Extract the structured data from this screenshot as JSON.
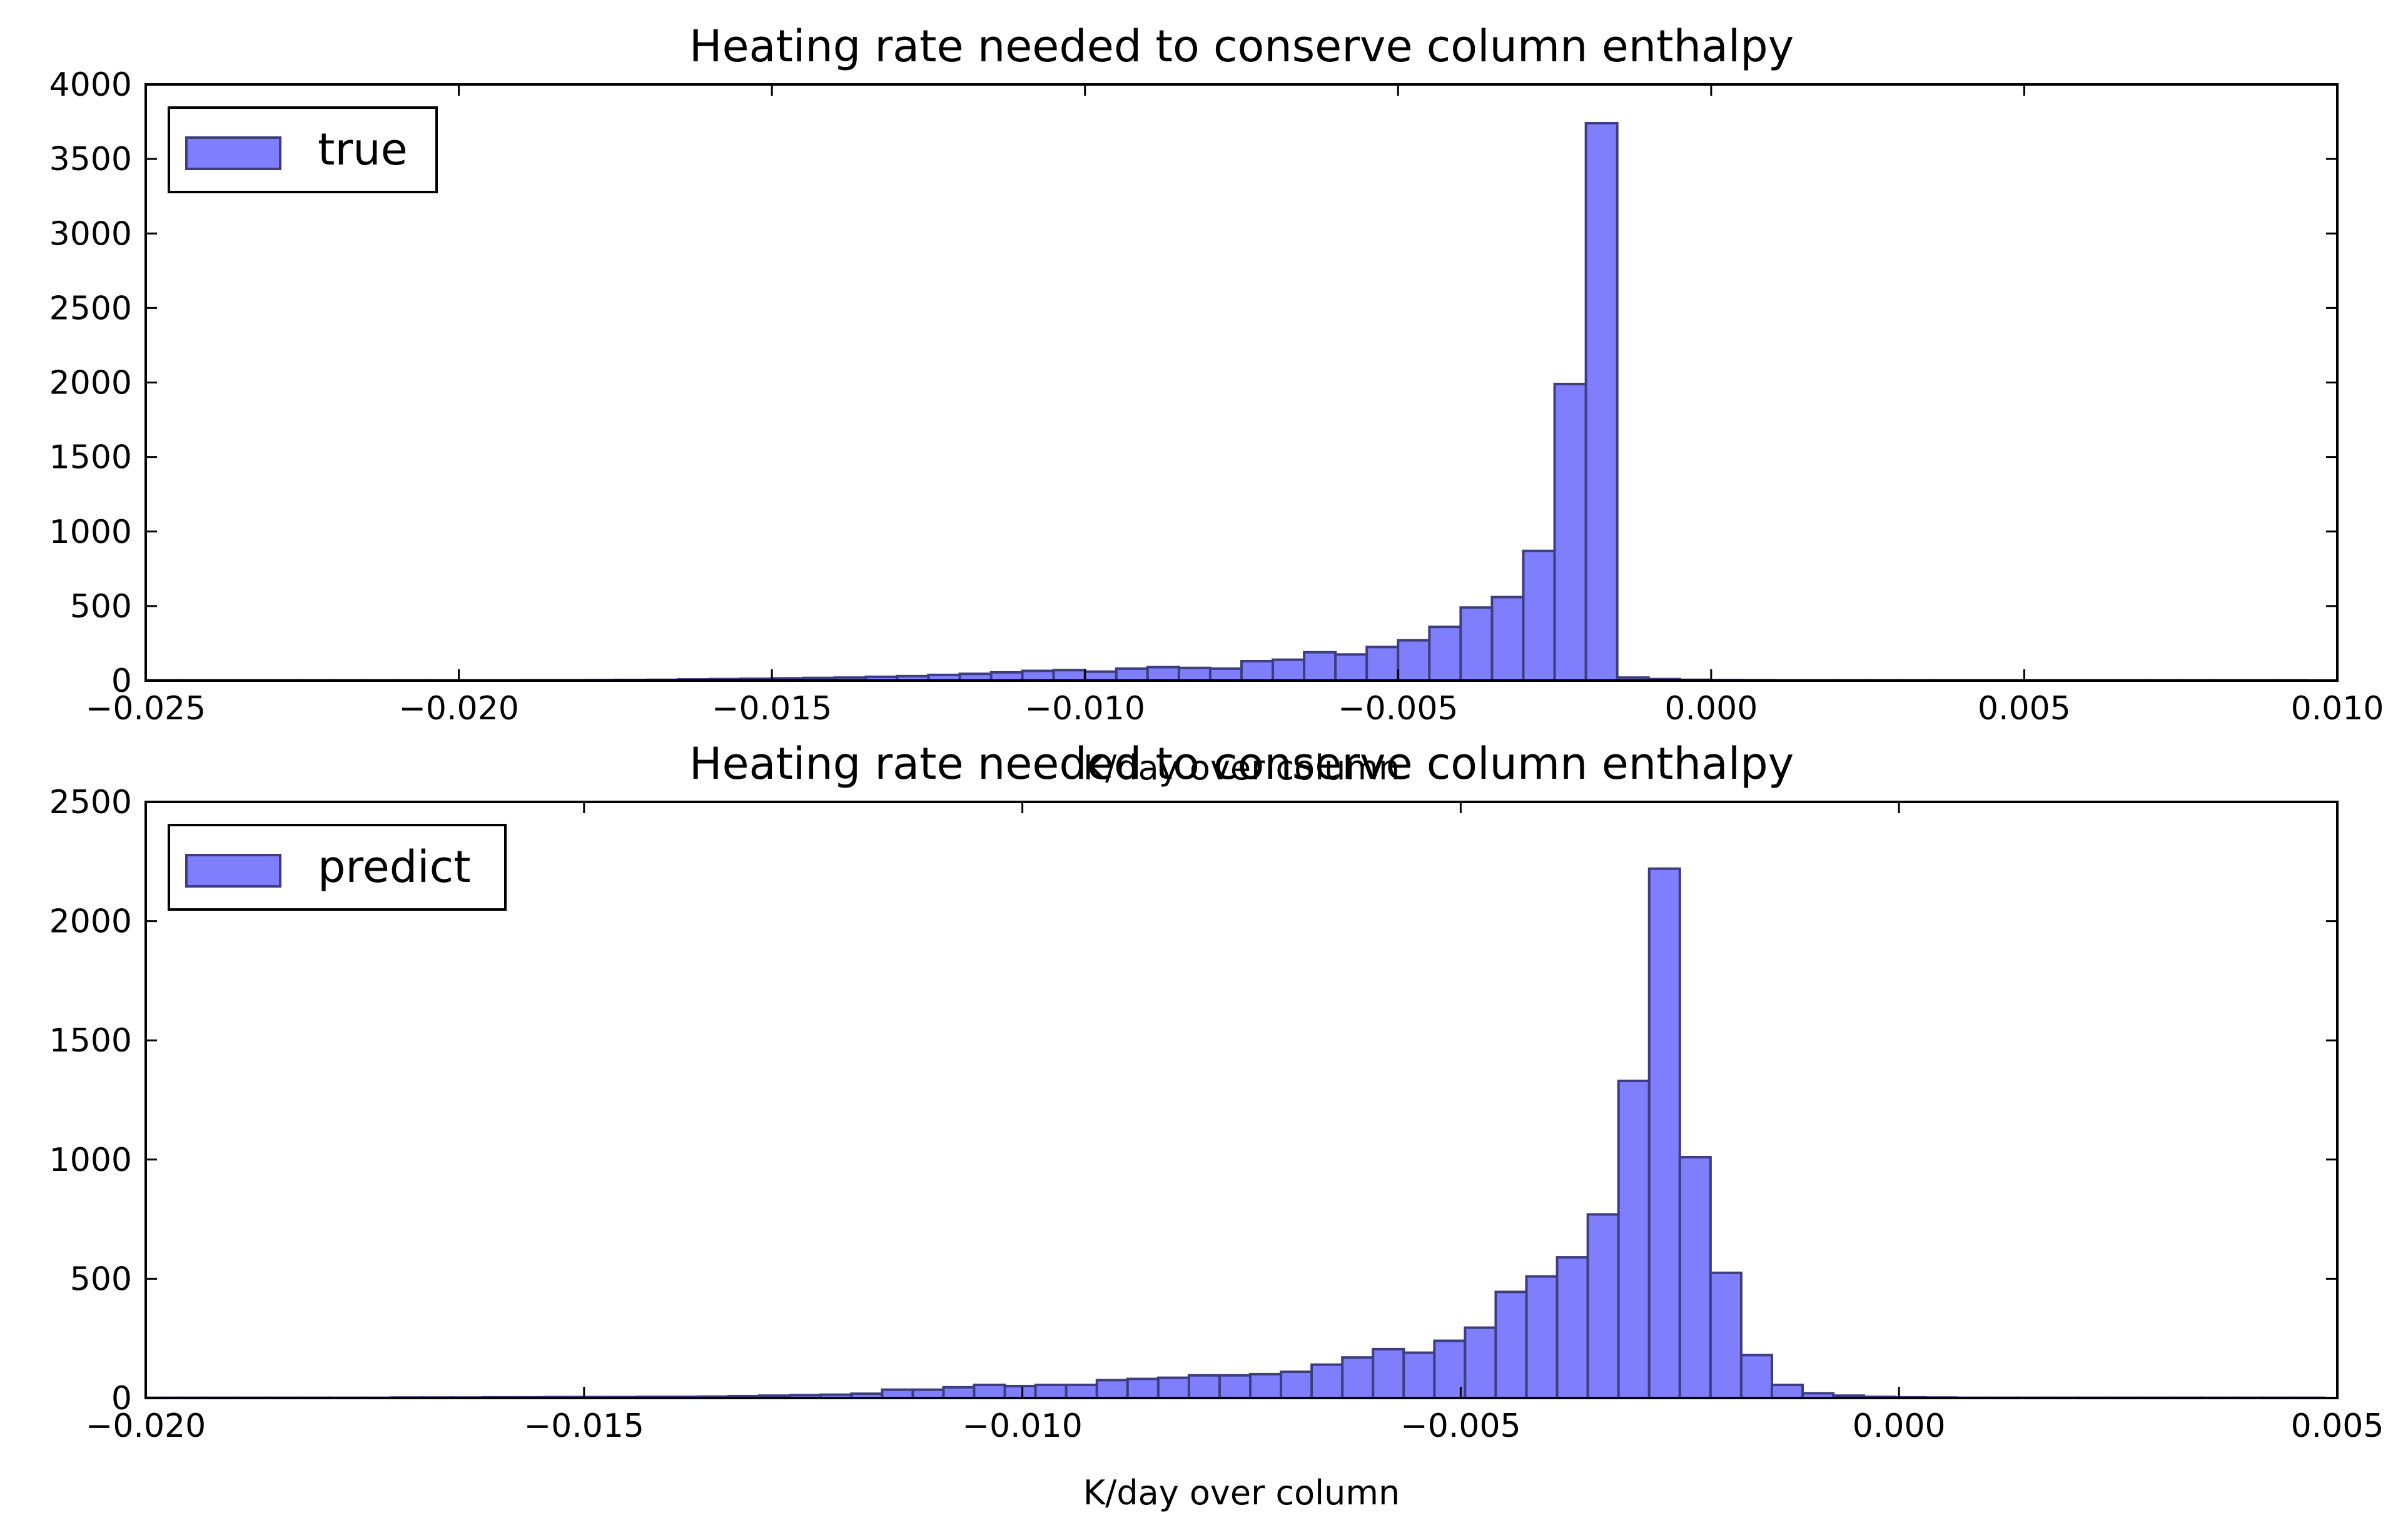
{
  "figure": {
    "background": "#ffffff"
  },
  "style": {
    "bar_fill": "#7f7ffe",
    "bar_stroke": "#3d3d80",
    "axis_color": "#000000"
  },
  "chart_data": [
    {
      "type": "bar",
      "histogram": true,
      "title": "Heating rate needed to conserve column enthalpy",
      "xlabel": "K/day over column",
      "ylabel": "",
      "xlim": [
        -0.025,
        0.01
      ],
      "ylim": [
        0,
        4000
      ],
      "xticks": [
        -0.025,
        -0.02,
        -0.015,
        -0.01,
        -0.005,
        0.0,
        0.005,
        0.01
      ],
      "xtick_labels": [
        "−0.025",
        "−0.020",
        "−0.015",
        "−0.010",
        "−0.005",
        "0.000",
        "0.005",
        "0.010"
      ],
      "yticks": [
        0,
        500,
        1000,
        1500,
        2000,
        2500,
        3000,
        3500,
        4000
      ],
      "ytick_labels": [
        "0",
        "500",
        "1000",
        "1500",
        "2000",
        "2500",
        "3000",
        "3500",
        "4000"
      ],
      "grid": false,
      "legend": {
        "position": "top-left",
        "entries": [
          "true"
        ]
      },
      "series": [
        {
          "name": "true",
          "bin_start": -0.0255,
          "bin_width": 0.0005,
          "values": [
            1,
            1,
            1,
            1,
            1,
            1,
            1,
            1,
            1,
            1,
            1,
            1,
            1,
            2,
            2,
            3,
            4,
            5,
            8,
            10,
            12,
            15,
            18,
            20,
            25,
            30,
            38,
            45,
            55,
            65,
            70,
            60,
            80,
            90,
            85,
            80,
            130,
            140,
            190,
            175,
            225,
            270,
            360,
            490,
            560,
            870,
            1990,
            3740,
            20,
            10,
            5,
            3,
            2,
            1,
            1,
            1,
            1,
            1,
            1,
            1,
            1,
            1,
            1,
            1,
            1,
            1,
            1,
            1,
            1,
            1
          ]
        }
      ]
    },
    {
      "type": "bar",
      "histogram": true,
      "title": "Heating rate needed to conserve column enthalpy",
      "xlabel": "K/day over column",
      "ylabel": "",
      "xlim": [
        -0.02,
        0.005
      ],
      "ylim": [
        0,
        2500
      ],
      "xticks": [
        -0.02,
        -0.015,
        -0.01,
        -0.005,
        0.0,
        0.005
      ],
      "xtick_labels": [
        "−0.020",
        "−0.015",
        "−0.010",
        "−0.005",
        "0.000",
        "0.005"
      ],
      "yticks": [
        0,
        500,
        1000,
        1500,
        2000,
        2500
      ],
      "ytick_labels": [
        "0",
        "500",
        "1000",
        "1500",
        "2000",
        "2500"
      ],
      "grid": false,
      "legend": {
        "position": "top-left",
        "entries": [
          "predict"
        ]
      },
      "series": [
        {
          "name": "predict",
          "bin_start": -0.02,
          "bin_width": 0.00035,
          "values": [
            1,
            1,
            1,
            1,
            1,
            1,
            1,
            1,
            2,
            2,
            2,
            3,
            3,
            4,
            4,
            4,
            5,
            5,
            6,
            8,
            10,
            12,
            14,
            18,
            35,
            35,
            45,
            55,
            50,
            55,
            55,
            75,
            80,
            85,
            95,
            95,
            100,
            110,
            140,
            170,
            205,
            190,
            240,
            295,
            445,
            510,
            590,
            770,
            1330,
            2220,
            1010,
            525,
            180,
            55,
            20,
            10,
            5,
            3,
            2,
            1,
            1,
            1,
            1,
            1,
            1,
            1,
            1,
            1,
            1,
            1,
            1
          ]
        }
      ]
    }
  ]
}
